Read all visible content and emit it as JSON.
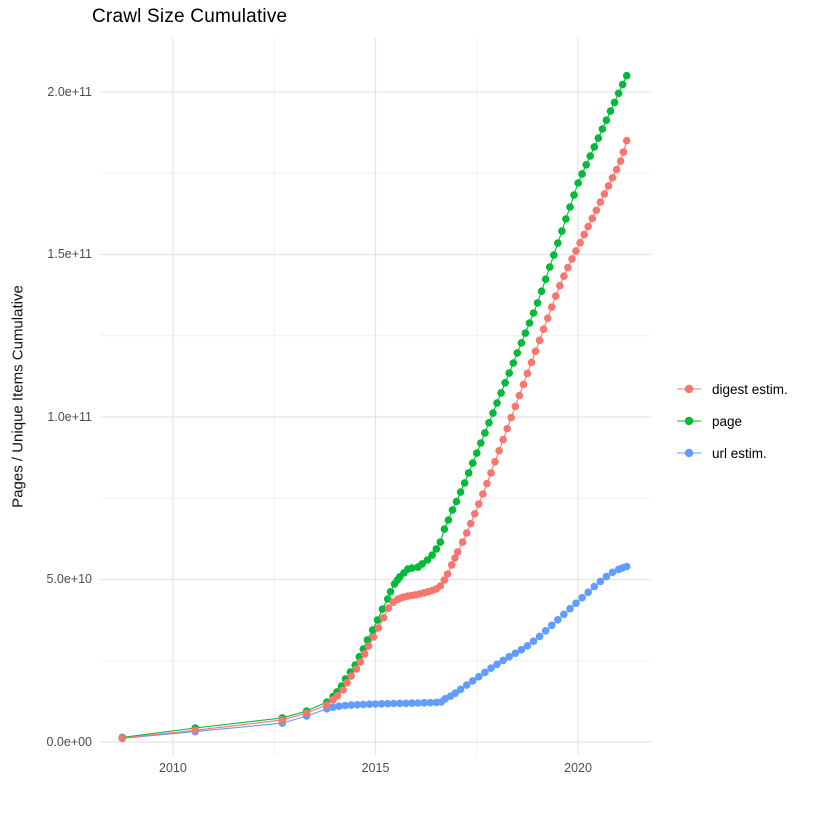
{
  "chart_data": {
    "type": "scatter",
    "title": "Crawl Size Cumulative",
    "xlabel": "",
    "ylabel": "Pages / Unique Items Cumulative",
    "value_unit": "points_1e9 values are pages/items in units of 1e9 (billions)",
    "grid": true,
    "legend_position": "right",
    "x_range": [
      2008.2,
      2021.8
    ],
    "y_range_1e9": [
      -4,
      216.6
    ],
    "x_ticks": {
      "major": [
        {
          "v": 2010,
          "label": "2010"
        },
        {
          "v": 2015,
          "label": "2015"
        },
        {
          "v": 2020,
          "label": "2020"
        }
      ],
      "minor": [
        2012.5,
        2017.5
      ]
    },
    "y_ticks": {
      "major": [
        {
          "v": 0,
          "label": "0.0e+00"
        },
        {
          "v": 50,
          "label": "5.0e+10"
        },
        {
          "v": 100,
          "label": "1.0e+11"
        },
        {
          "v": 150,
          "label": "1.5e+11"
        },
        {
          "v": 200,
          "label": "2.0e+11"
        }
      ],
      "minor": [
        25,
        75,
        125,
        175
      ]
    },
    "colors": {
      "digest_estim": "#F8766D",
      "page": "#00BA38",
      "url_estim": "#619CFF",
      "grid_major": "#E4E4E4",
      "grid_minor": "#EFEFEF",
      "tick_text": "#4d4d4d"
    },
    "legend_order": [
      "digest estim.",
      "page",
      "url estim."
    ],
    "draw_order": [
      "url estim.",
      "page",
      "digest estim."
    ],
    "series": [
      {
        "name": "digest estim.",
        "color": "#F8766D",
        "points_1e9": [
          [
            2008.75,
            1.2
          ],
          [
            2010.55,
            3.6
          ],
          [
            2012.7,
            6.8
          ],
          [
            2013.3,
            8.9
          ],
          [
            2013.8,
            11.4
          ],
          [
            2013.95,
            13.0
          ],
          [
            2014.06,
            14.2
          ],
          [
            2014.2,
            16.0
          ],
          [
            2014.3,
            18.2
          ],
          [
            2014.4,
            20.3
          ],
          [
            2014.53,
            22.5
          ],
          [
            2014.63,
            24.6
          ],
          [
            2014.73,
            27.1
          ],
          [
            2014.83,
            29.5
          ],
          [
            2014.95,
            32.3
          ],
          [
            2015.07,
            35.1
          ],
          [
            2015.2,
            38.2
          ],
          [
            2015.32,
            41.2
          ],
          [
            2015.44,
            43.0
          ],
          [
            2015.55,
            43.9
          ],
          [
            2015.63,
            44.3
          ],
          [
            2015.7,
            44.6
          ],
          [
            2015.8,
            44.9
          ],
          [
            2015.9,
            45.1
          ],
          [
            2016.0,
            45.3
          ],
          [
            2016.1,
            45.6
          ],
          [
            2016.2,
            45.9
          ],
          [
            2016.3,
            46.2
          ],
          [
            2016.4,
            46.6
          ],
          [
            2016.5,
            47.1
          ],
          [
            2016.6,
            48.0
          ],
          [
            2016.7,
            49.8
          ],
          [
            2016.78,
            51.7
          ],
          [
            2016.88,
            54.5
          ],
          [
            2016.96,
            56.6
          ],
          [
            2017.03,
            58.5
          ],
          [
            2017.15,
            61.5
          ],
          [
            2017.25,
            64.3
          ],
          [
            2017.35,
            67.2
          ],
          [
            2017.45,
            70.2
          ],
          [
            2017.55,
            73.2
          ],
          [
            2017.65,
            76.3
          ],
          [
            2017.75,
            79.5
          ],
          [
            2017.85,
            82.8
          ],
          [
            2017.95,
            86.2
          ],
          [
            2018.05,
            89.6
          ],
          [
            2018.15,
            93.0
          ],
          [
            2018.25,
            96.4
          ],
          [
            2018.35,
            99.8
          ],
          [
            2018.45,
            103.2
          ],
          [
            2018.55,
            106.6
          ],
          [
            2018.65,
            110.0
          ],
          [
            2018.75,
            113.4
          ],
          [
            2018.85,
            116.8
          ],
          [
            2018.95,
            120.2
          ],
          [
            2019.05,
            123.6
          ],
          [
            2019.15,
            127.0
          ],
          [
            2019.25,
            130.4
          ],
          [
            2019.35,
            133.8
          ],
          [
            2019.45,
            137.2
          ],
          [
            2019.55,
            140.4
          ],
          [
            2019.65,
            143.3
          ],
          [
            2019.75,
            146.0
          ],
          [
            2019.85,
            148.6
          ],
          [
            2019.95,
            151.1
          ],
          [
            2020.05,
            153.6
          ],
          [
            2020.15,
            156.1
          ],
          [
            2020.25,
            158.6
          ],
          [
            2020.35,
            161.1
          ],
          [
            2020.45,
            163.6
          ],
          [
            2020.55,
            166.1
          ],
          [
            2020.65,
            168.6
          ],
          [
            2020.75,
            171.1
          ],
          [
            2020.85,
            173.6
          ],
          [
            2020.95,
            176.1
          ],
          [
            2021.05,
            178.7
          ],
          [
            2021.12,
            181.5
          ],
          [
            2021.2,
            185.0
          ]
        ]
      },
      {
        "name": "page",
        "color": "#00BA38",
        "points_1e9": [
          [
            2008.75,
            1.4
          ],
          [
            2010.55,
            4.3
          ],
          [
            2012.7,
            7.4
          ],
          [
            2013.3,
            9.5
          ],
          [
            2013.8,
            12.3
          ],
          [
            2013.95,
            14.0
          ],
          [
            2014.05,
            15.4
          ],
          [
            2014.16,
            17.2
          ],
          [
            2014.26,
            19.4
          ],
          [
            2014.38,
            21.5
          ],
          [
            2014.5,
            23.7
          ],
          [
            2014.6,
            26.2
          ],
          [
            2014.7,
            28.6
          ],
          [
            2014.8,
            31.4
          ],
          [
            2014.93,
            34.5
          ],
          [
            2015.05,
            37.5
          ],
          [
            2015.17,
            40.9
          ],
          [
            2015.3,
            44.0
          ],
          [
            2015.37,
            46.2
          ],
          [
            2015.47,
            48.6
          ],
          [
            2015.54,
            49.8
          ],
          [
            2015.6,
            50.8
          ],
          [
            2015.7,
            52.0
          ],
          [
            2015.8,
            53.2
          ],
          [
            2015.9,
            53.5
          ],
          [
            2016.05,
            53.8
          ],
          [
            2016.15,
            54.8
          ],
          [
            2016.28,
            56.0
          ],
          [
            2016.4,
            57.5
          ],
          [
            2016.5,
            59.4
          ],
          [
            2016.6,
            61.5
          ],
          [
            2016.7,
            65.5
          ],
          [
            2016.8,
            68.3
          ],
          [
            2016.9,
            71.4
          ],
          [
            2017.0,
            74.0
          ],
          [
            2017.1,
            76.9
          ],
          [
            2017.2,
            79.7
          ],
          [
            2017.3,
            82.8
          ],
          [
            2017.4,
            85.8
          ],
          [
            2017.5,
            88.9
          ],
          [
            2017.6,
            92.0
          ],
          [
            2017.7,
            95.1
          ],
          [
            2017.8,
            98.2
          ],
          [
            2017.9,
            101.2
          ],
          [
            2018.0,
            104.3
          ],
          [
            2018.1,
            107.4
          ],
          [
            2018.2,
            110.5
          ],
          [
            2018.3,
            113.5
          ],
          [
            2018.4,
            116.6
          ],
          [
            2018.5,
            119.7
          ],
          [
            2018.6,
            122.8
          ],
          [
            2018.7,
            125.8
          ],
          [
            2018.8,
            128.9
          ],
          [
            2018.9,
            132.0
          ],
          [
            2019.0,
            135.1
          ],
          [
            2019.1,
            138.7
          ],
          [
            2019.2,
            142.4
          ],
          [
            2019.3,
            146.1
          ],
          [
            2019.4,
            149.8
          ],
          [
            2019.5,
            153.5
          ],
          [
            2019.6,
            157.2
          ],
          [
            2019.7,
            160.9
          ],
          [
            2019.8,
            164.6
          ],
          [
            2019.9,
            168.3
          ],
          [
            2020.0,
            172.0
          ],
          [
            2020.1,
            174.8
          ],
          [
            2020.2,
            177.6
          ],
          [
            2020.3,
            180.3
          ],
          [
            2020.4,
            183.1
          ],
          [
            2020.5,
            185.8
          ],
          [
            2020.6,
            188.6
          ],
          [
            2020.7,
            191.3
          ],
          [
            2020.8,
            194.1
          ],
          [
            2020.9,
            196.8
          ],
          [
            2021.0,
            199.6
          ],
          [
            2021.1,
            202.3
          ],
          [
            2021.2,
            205.0
          ]
        ]
      },
      {
        "name": "url estim.",
        "color": "#619CFF",
        "points_1e9": [
          [
            2008.75,
            1.1
          ],
          [
            2010.55,
            3.2
          ],
          [
            2012.7,
            5.8
          ],
          [
            2013.3,
            8.0
          ],
          [
            2013.8,
            10.2
          ],
          [
            2013.95,
            10.7
          ],
          [
            2014.1,
            11.0
          ],
          [
            2014.25,
            11.2
          ],
          [
            2014.4,
            11.35
          ],
          [
            2014.55,
            11.45
          ],
          [
            2014.7,
            11.55
          ],
          [
            2014.85,
            11.62
          ],
          [
            2015.0,
            11.68
          ],
          [
            2015.15,
            11.74
          ],
          [
            2015.3,
            11.79
          ],
          [
            2015.45,
            11.84
          ],
          [
            2015.6,
            11.88
          ],
          [
            2015.75,
            11.92
          ],
          [
            2015.9,
            11.96
          ],
          [
            2016.05,
            12.0
          ],
          [
            2016.2,
            12.05
          ],
          [
            2016.35,
            12.1
          ],
          [
            2016.5,
            12.18
          ],
          [
            2016.62,
            12.3
          ],
          [
            2016.72,
            13.3
          ],
          [
            2016.85,
            14.1
          ],
          [
            2016.97,
            15.0
          ],
          [
            2017.1,
            16.2
          ],
          [
            2017.25,
            17.5
          ],
          [
            2017.4,
            18.8
          ],
          [
            2017.55,
            20.1
          ],
          [
            2017.7,
            21.4
          ],
          [
            2017.85,
            22.7
          ],
          [
            2018.0,
            23.9
          ],
          [
            2018.15,
            25.1
          ],
          [
            2018.3,
            26.2
          ],
          [
            2018.45,
            27.3
          ],
          [
            2018.6,
            28.4
          ],
          [
            2018.75,
            29.6
          ],
          [
            2018.9,
            31.0
          ],
          [
            2019.05,
            32.5
          ],
          [
            2019.2,
            34.2
          ],
          [
            2019.35,
            35.9
          ],
          [
            2019.5,
            37.6
          ],
          [
            2019.65,
            39.3
          ],
          [
            2019.8,
            41.0
          ],
          [
            2019.95,
            42.7
          ],
          [
            2020.1,
            44.4
          ],
          [
            2020.25,
            46.1
          ],
          [
            2020.4,
            47.8
          ],
          [
            2020.55,
            49.4
          ],
          [
            2020.7,
            50.9
          ],
          [
            2020.85,
            52.2
          ],
          [
            2021.0,
            53.1
          ],
          [
            2021.1,
            53.6
          ],
          [
            2021.2,
            54.0
          ]
        ]
      }
    ]
  }
}
